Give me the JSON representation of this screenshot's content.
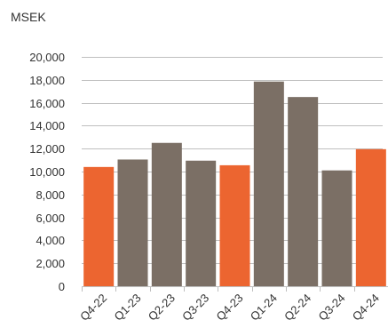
{
  "chart_data": {
    "type": "bar",
    "title": "",
    "unit_label": "MSEK",
    "xlabel": "",
    "ylabel": "",
    "categories": [
      "Q4-22",
      "Q1-23",
      "Q2-23",
      "Q3-23",
      "Q4-23",
      "Q1-24",
      "Q2-24",
      "Q3-24",
      "Q4-24"
    ],
    "values": [
      10400,
      11050,
      12500,
      10950,
      10550,
      17850,
      16500,
      10100,
      11950
    ],
    "highlight": [
      true,
      false,
      false,
      false,
      true,
      false,
      false,
      false,
      true
    ],
    "colors": {
      "highlight": "#EC6530",
      "default": "#7B6F65"
    },
    "ylim": [
      0,
      20000
    ],
    "y_ticks": [
      0,
      2000,
      4000,
      6000,
      8000,
      10000,
      12000,
      14000,
      16000,
      18000,
      20000
    ],
    "y_tick_labels": [
      "0",
      "2,000",
      "4,000",
      "6,000",
      "8,000",
      "10,000",
      "12,000",
      "14,000",
      "16,000",
      "18,000",
      "20,000"
    ],
    "grid": true,
    "legend": "none"
  }
}
